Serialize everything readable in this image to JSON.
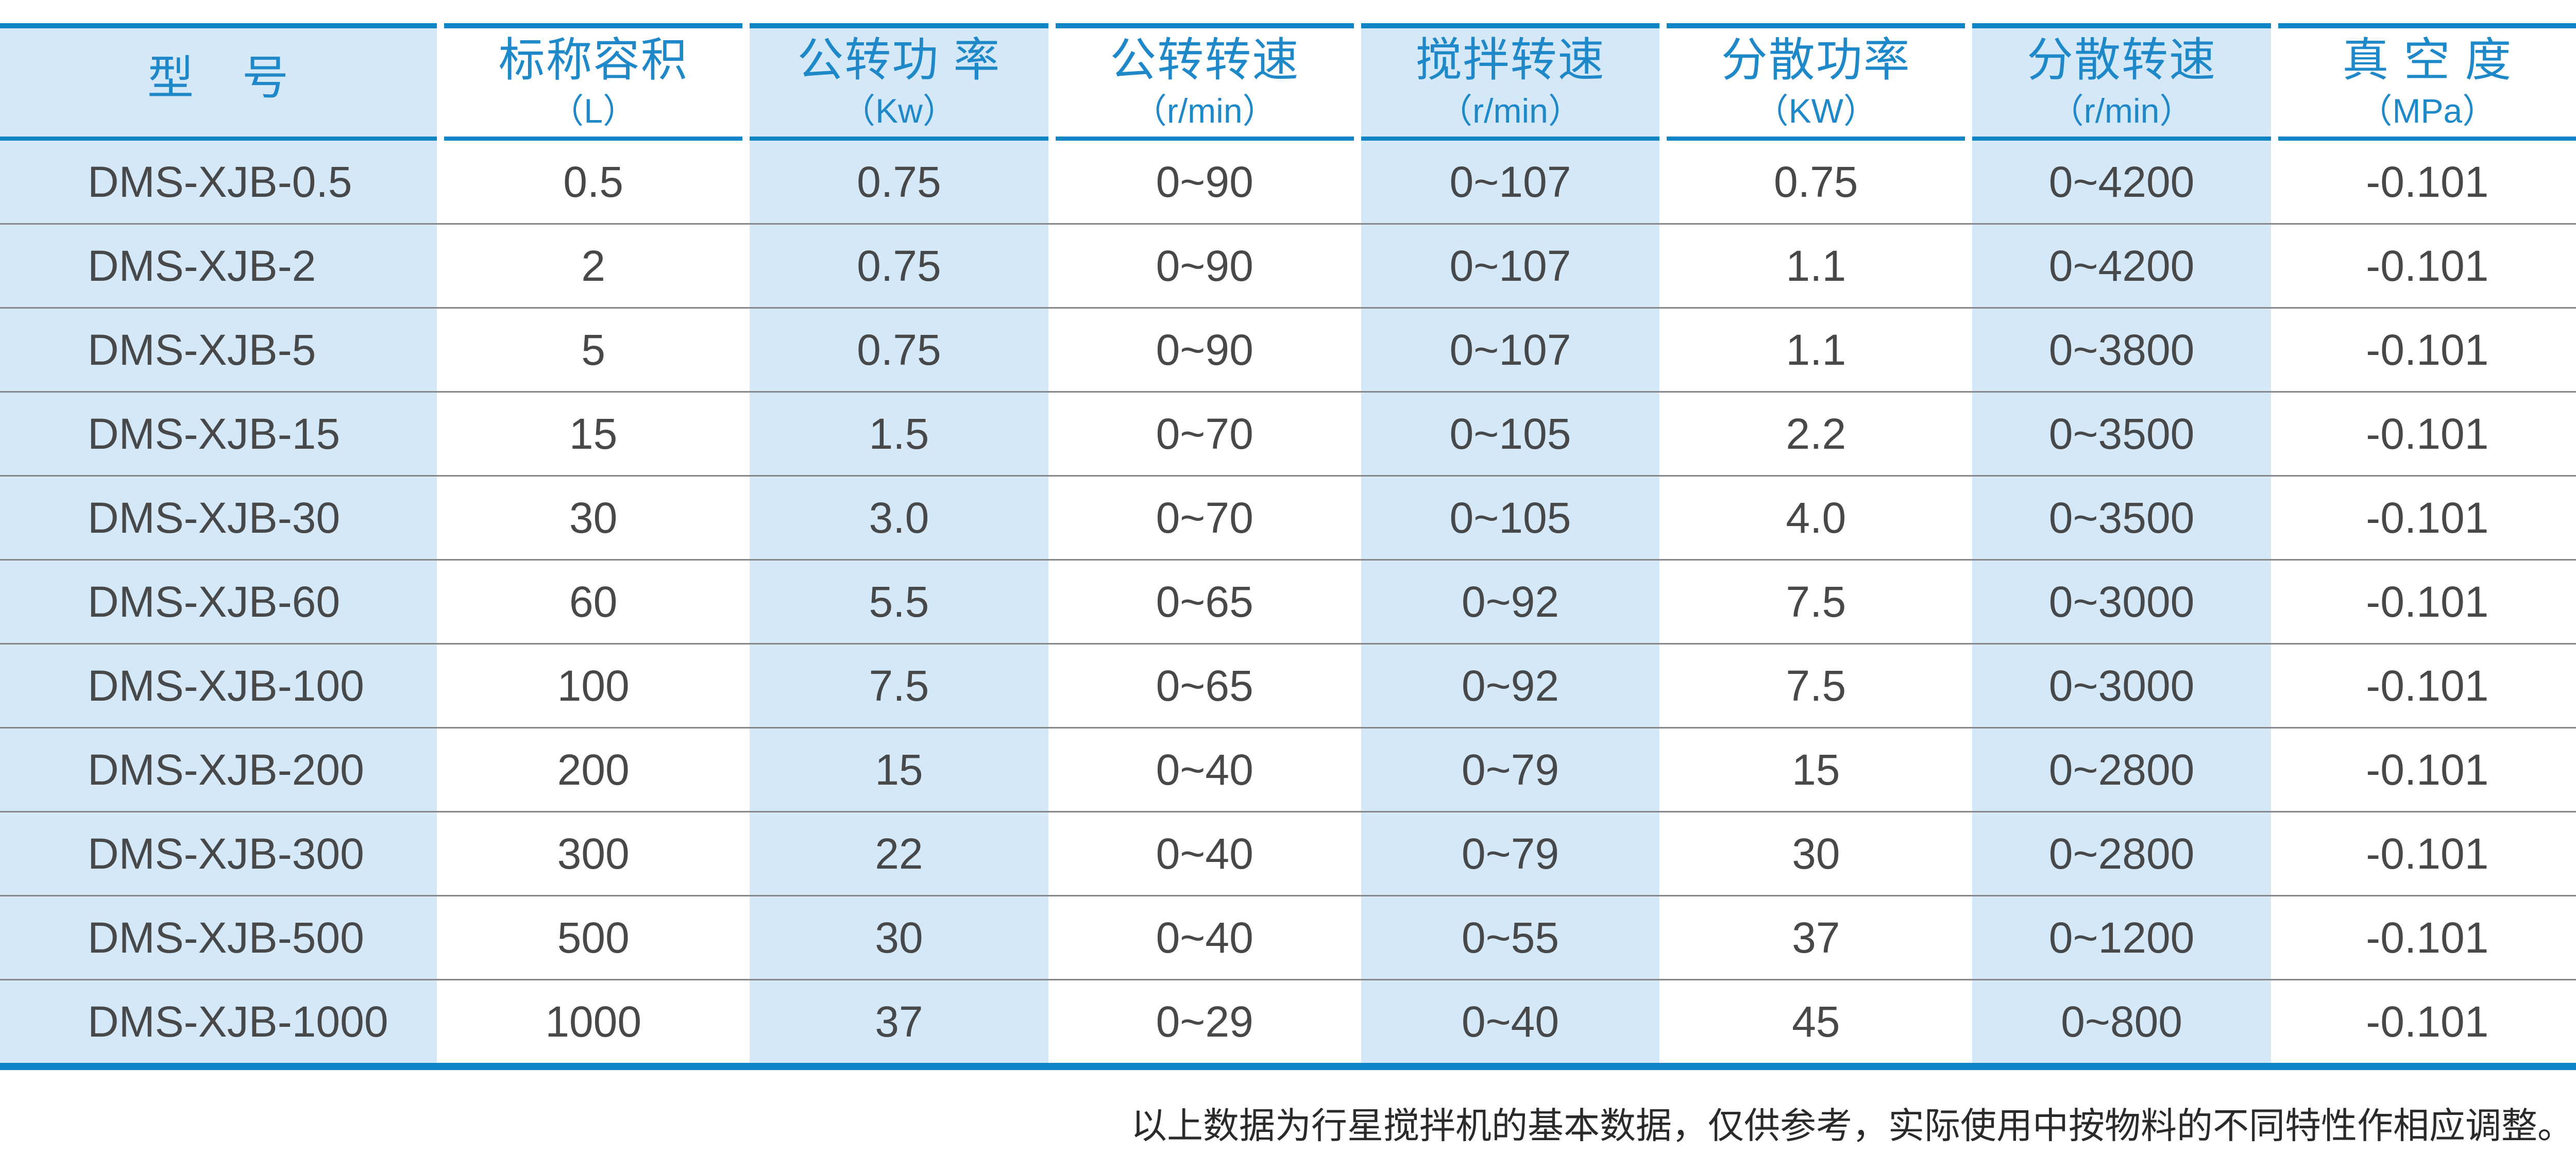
{
  "colors": {
    "accent_blue": "#0f84c6",
    "header_text": "#1e88c8",
    "shaded_col_bg": "#d5e8f7",
    "body_text": "#47484a",
    "row_line": "#85878a",
    "footer_text": "#2a2a2a"
  },
  "table": {
    "columns": [
      {
        "title": "型　号",
        "unit": "",
        "shaded": true
      },
      {
        "title": "标称容积",
        "unit": "（L）",
        "shaded": false
      },
      {
        "title": "公转功 率",
        "unit": "（Kw）",
        "shaded": true
      },
      {
        "title": "公转转速",
        "unit": "（r/min）",
        "shaded": false
      },
      {
        "title": "搅拌转速",
        "unit": "（r/min）",
        "shaded": true
      },
      {
        "title": "分散功率",
        "unit": "（KW）",
        "shaded": false
      },
      {
        "title": "分散转速",
        "unit": "（r/min）",
        "shaded": true
      },
      {
        "title": "真 空 度",
        "unit": "（MPa）",
        "shaded": false
      }
    ],
    "rows": [
      [
        "DMS-XJB-0.5",
        "0.5",
        "0.75",
        "0~90",
        "0~107",
        "0.75",
        "0~4200",
        "-0.101"
      ],
      [
        "DMS-XJB-2",
        "2",
        "0.75",
        "0~90",
        "0~107",
        "1.1",
        "0~4200",
        "-0.101"
      ],
      [
        "DMS-XJB-5",
        "5",
        "0.75",
        "0~90",
        "0~107",
        "1.1",
        "0~3800",
        "-0.101"
      ],
      [
        "DMS-XJB-15",
        "15",
        "1.5",
        "0~70",
        "0~105",
        "2.2",
        "0~3500",
        "-0.101"
      ],
      [
        "DMS-XJB-30",
        "30",
        "3.0",
        "0~70",
        "0~105",
        "4.0",
        "0~3500",
        "-0.101"
      ],
      [
        "DMS-XJB-60",
        "60",
        "5.5",
        "0~65",
        "0~92",
        "7.5",
        "0~3000",
        "-0.101"
      ],
      [
        "DMS-XJB-100",
        "100",
        "7.5",
        "0~65",
        "0~92",
        "7.5",
        "0~3000",
        "-0.101"
      ],
      [
        "DMS-XJB-200",
        "200",
        "15",
        "0~40",
        "0~79",
        "15",
        "0~2800",
        "-0.101"
      ],
      [
        "DMS-XJB-300",
        "300",
        "22",
        "0~40",
        "0~79",
        "30",
        "0~2800",
        "-0.101"
      ],
      [
        "DMS-XJB-500",
        "500",
        "30",
        "0~40",
        "0~55",
        "37",
        "0~1200",
        "-0.101"
      ],
      [
        "DMS-XJB-1000",
        "1000",
        "37",
        "0~29",
        "0~40",
        "45",
        "0~800",
        "-0.101"
      ]
    ]
  },
  "footer": {
    "note": "以上数据为行星搅拌机的基本数据，仅供参考，实际使用中按物料的不同特性作相应调整。"
  }
}
